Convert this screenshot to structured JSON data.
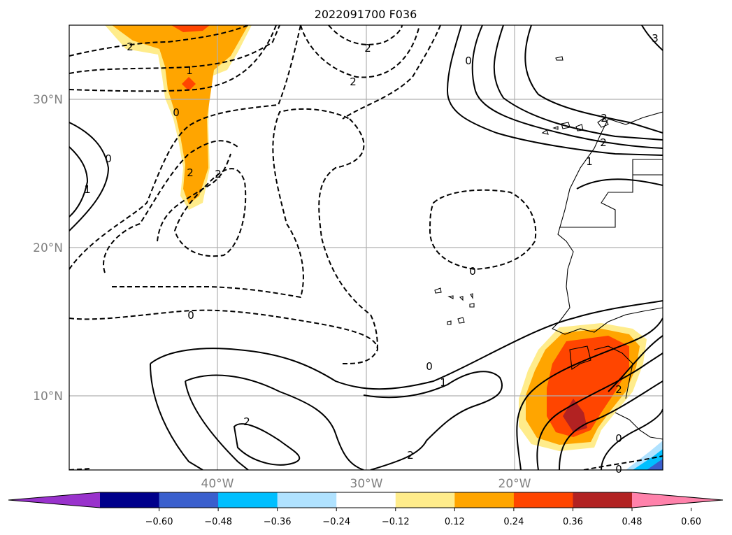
{
  "title": "2022091700 F036",
  "lat_labels": [
    "30°N",
    "20°N",
    "10°N"
  ],
  "lon_labels": [
    "40°W",
    "30°W",
    "20°W"
  ],
  "contour_labels": [
    "2",
    "2",
    "2",
    "1",
    "0",
    "0",
    "1",
    "2",
    "2",
    "0",
    "0",
    "2",
    "2",
    "0",
    "0",
    "1",
    "2",
    "2",
    "1",
    "2",
    "0",
    "0",
    "3"
  ],
  "colorbar": {
    "ticks": [
      "−0.60",
      "−0.48",
      "−0.36",
      "−0.24",
      "−0.12",
      "0.12",
      "0.24",
      "0.36",
      "0.48",
      "0.60"
    ],
    "colors": [
      "#9932cc",
      "#00008b",
      "#3a5fcd",
      "#00bfff",
      "#b0e2ff",
      "#ffffff",
      "#ffec8b",
      "#ffa500",
      "#ff4500",
      "#b22222",
      "#ff82ab"
    ]
  }
}
